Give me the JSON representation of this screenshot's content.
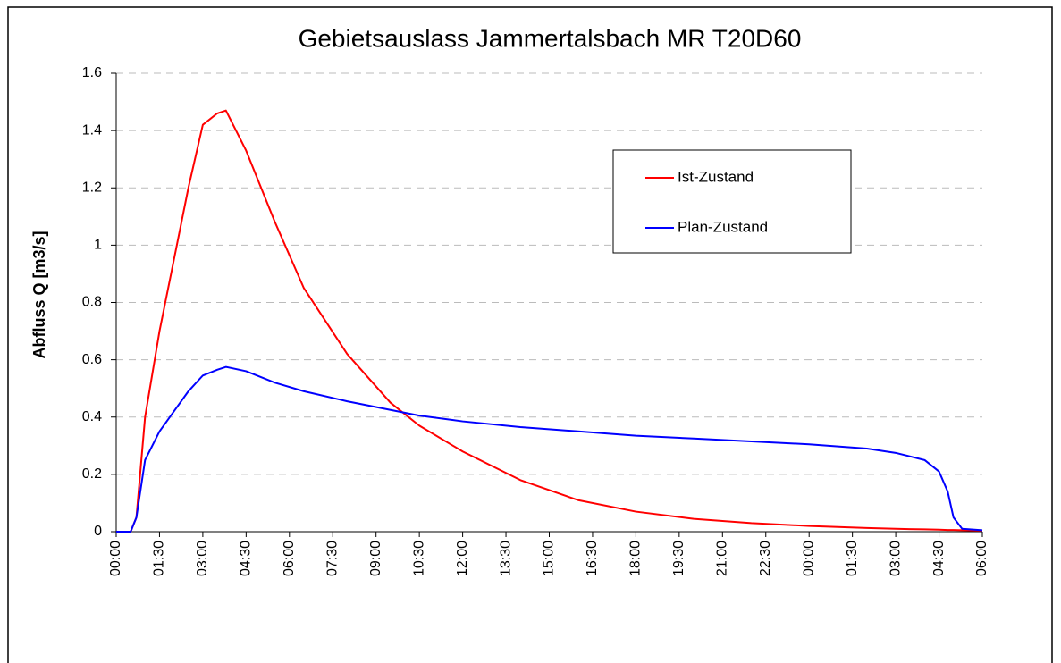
{
  "chart_data": {
    "type": "line",
    "title": "Gebietsauslass Jammertalsbach MR T20D60",
    "y_label": "Abfluss Q [m3/s]",
    "x": [
      0,
      0.5,
      0.7,
      1.0,
      1.5,
      2.0,
      2.5,
      3.0,
      3.5,
      3.8,
      4.5,
      5.5,
      6.5,
      8,
      9.5,
      10.5,
      12,
      14,
      16,
      18,
      20,
      22,
      24,
      26,
      27,
      28,
      28.5,
      28.8,
      29,
      29.3,
      30
    ],
    "series": [
      {
        "name": "Ist-Zustand",
        "color": "#ff0000",
        "values": [
          0,
          0,
          0.05,
          0.4,
          0.7,
          0.95,
          1.2,
          1.42,
          1.46,
          1.47,
          1.33,
          1.08,
          0.85,
          0.62,
          0.45,
          0.37,
          0.28,
          0.18,
          0.11,
          0.07,
          0.045,
          0.03,
          0.02,
          0.013,
          0.01,
          0.008,
          0.007,
          0.006,
          0.006,
          0.005,
          0.004
        ]
      },
      {
        "name": "Plan-Zustand",
        "color": "#0000ff",
        "values": [
          0,
          0,
          0.05,
          0.25,
          0.35,
          0.42,
          0.49,
          0.545,
          0.565,
          0.575,
          0.56,
          0.52,
          0.49,
          0.455,
          0.425,
          0.405,
          0.385,
          0.365,
          0.35,
          0.335,
          0.325,
          0.315,
          0.305,
          0.29,
          0.275,
          0.25,
          0.21,
          0.14,
          0.05,
          0.01,
          0.005
        ]
      }
    ],
    "xlim": [
      0,
      30
    ],
    "xticks": [
      {
        "value": 0,
        "label": "00:00"
      },
      {
        "value": 1.5,
        "label": "01:30"
      },
      {
        "value": 3,
        "label": "03:00"
      },
      {
        "value": 4.5,
        "label": "04:30"
      },
      {
        "value": 6,
        "label": "06:00"
      },
      {
        "value": 7.5,
        "label": "07:30"
      },
      {
        "value": 9,
        "label": "09:00"
      },
      {
        "value": 10.5,
        "label": "10:30"
      },
      {
        "value": 12,
        "label": "12:00"
      },
      {
        "value": 13.5,
        "label": "13:30"
      },
      {
        "value": 15,
        "label": "15:00"
      },
      {
        "value": 16.5,
        "label": "16:30"
      },
      {
        "value": 18,
        "label": "18:00"
      },
      {
        "value": 19.5,
        "label": "19:30"
      },
      {
        "value": 21,
        "label": "21:00"
      },
      {
        "value": 22.5,
        "label": "22:30"
      },
      {
        "value": 24,
        "label": "00:00"
      },
      {
        "value": 25.5,
        "label": "01:30"
      },
      {
        "value": 27,
        "label": "03:00"
      },
      {
        "value": 28.5,
        "label": "04:30"
      },
      {
        "value": 30,
        "label": "06:00"
      }
    ],
    "ylim": [
      0,
      1.6
    ],
    "yticks": [
      0,
      0.2,
      0.4,
      0.6,
      0.8,
      1,
      1.2,
      1.4,
      1.6
    ],
    "grid": true,
    "legend": "upper-right"
  }
}
